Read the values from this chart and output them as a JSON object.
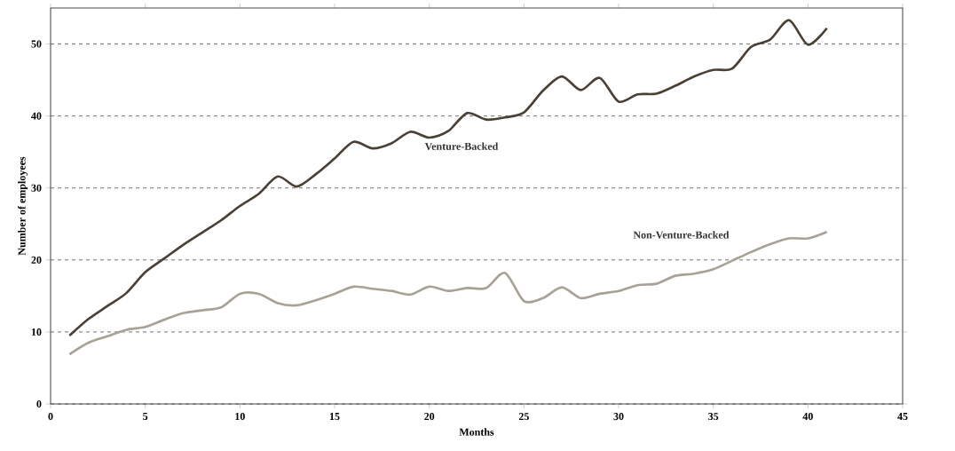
{
  "chart_data": {
    "type": "line",
    "xlabel": "Months",
    "ylabel": "Number of employees",
    "x": [
      1,
      2,
      3,
      4,
      5,
      6,
      7,
      8,
      9,
      10,
      11,
      12,
      13,
      14,
      15,
      16,
      17,
      18,
      19,
      20,
      21,
      22,
      23,
      24,
      25,
      26,
      27,
      28,
      29,
      30,
      31,
      32,
      33,
      34,
      35,
      36,
      37,
      38,
      39,
      40,
      41
    ],
    "series": [
      {
        "name": "Venture-Backed",
        "color": "#4a4036",
        "values": [
          9.5,
          11.8,
          13.6,
          15.4,
          18.3,
          20.2,
          22.1,
          23.8,
          25.5,
          27.5,
          29.2,
          31.6,
          30.2,
          31.9,
          34.1,
          36.4,
          35.5,
          36.2,
          37.8,
          37.0,
          37.9,
          40.4,
          39.5,
          39.8,
          40.5,
          43.5,
          45.5,
          43.6,
          45.3,
          42.0,
          43.0,
          43.1,
          44.2,
          45.5,
          46.4,
          46.6,
          49.6,
          50.6,
          53.3,
          49.9,
          52.2
        ]
      },
      {
        "name": "Non-Venture-Backed",
        "color": "#a8a296",
        "values": [
          6.9,
          8.5,
          9.4,
          10.3,
          10.7,
          11.7,
          12.6,
          13.0,
          13.4,
          15.3,
          15.3,
          14.0,
          13.7,
          14.4,
          15.3,
          16.3,
          16.0,
          15.7,
          15.2,
          16.3,
          15.7,
          16.1,
          16.1,
          18.2,
          14.3,
          14.7,
          16.2,
          14.7,
          15.3,
          15.7,
          16.5,
          16.7,
          17.8,
          18.1,
          18.7,
          19.9,
          21.1,
          22.2,
          23.0,
          23.0,
          23.9
        ]
      }
    ],
    "xlim": [
      0,
      45
    ],
    "ylim": [
      0,
      55
    ],
    "xticks": [
      0,
      5,
      10,
      15,
      20,
      25,
      30,
      35,
      40,
      45
    ],
    "yticks": [
      0,
      10,
      20,
      30,
      40,
      50
    ],
    "grid": "y"
  }
}
